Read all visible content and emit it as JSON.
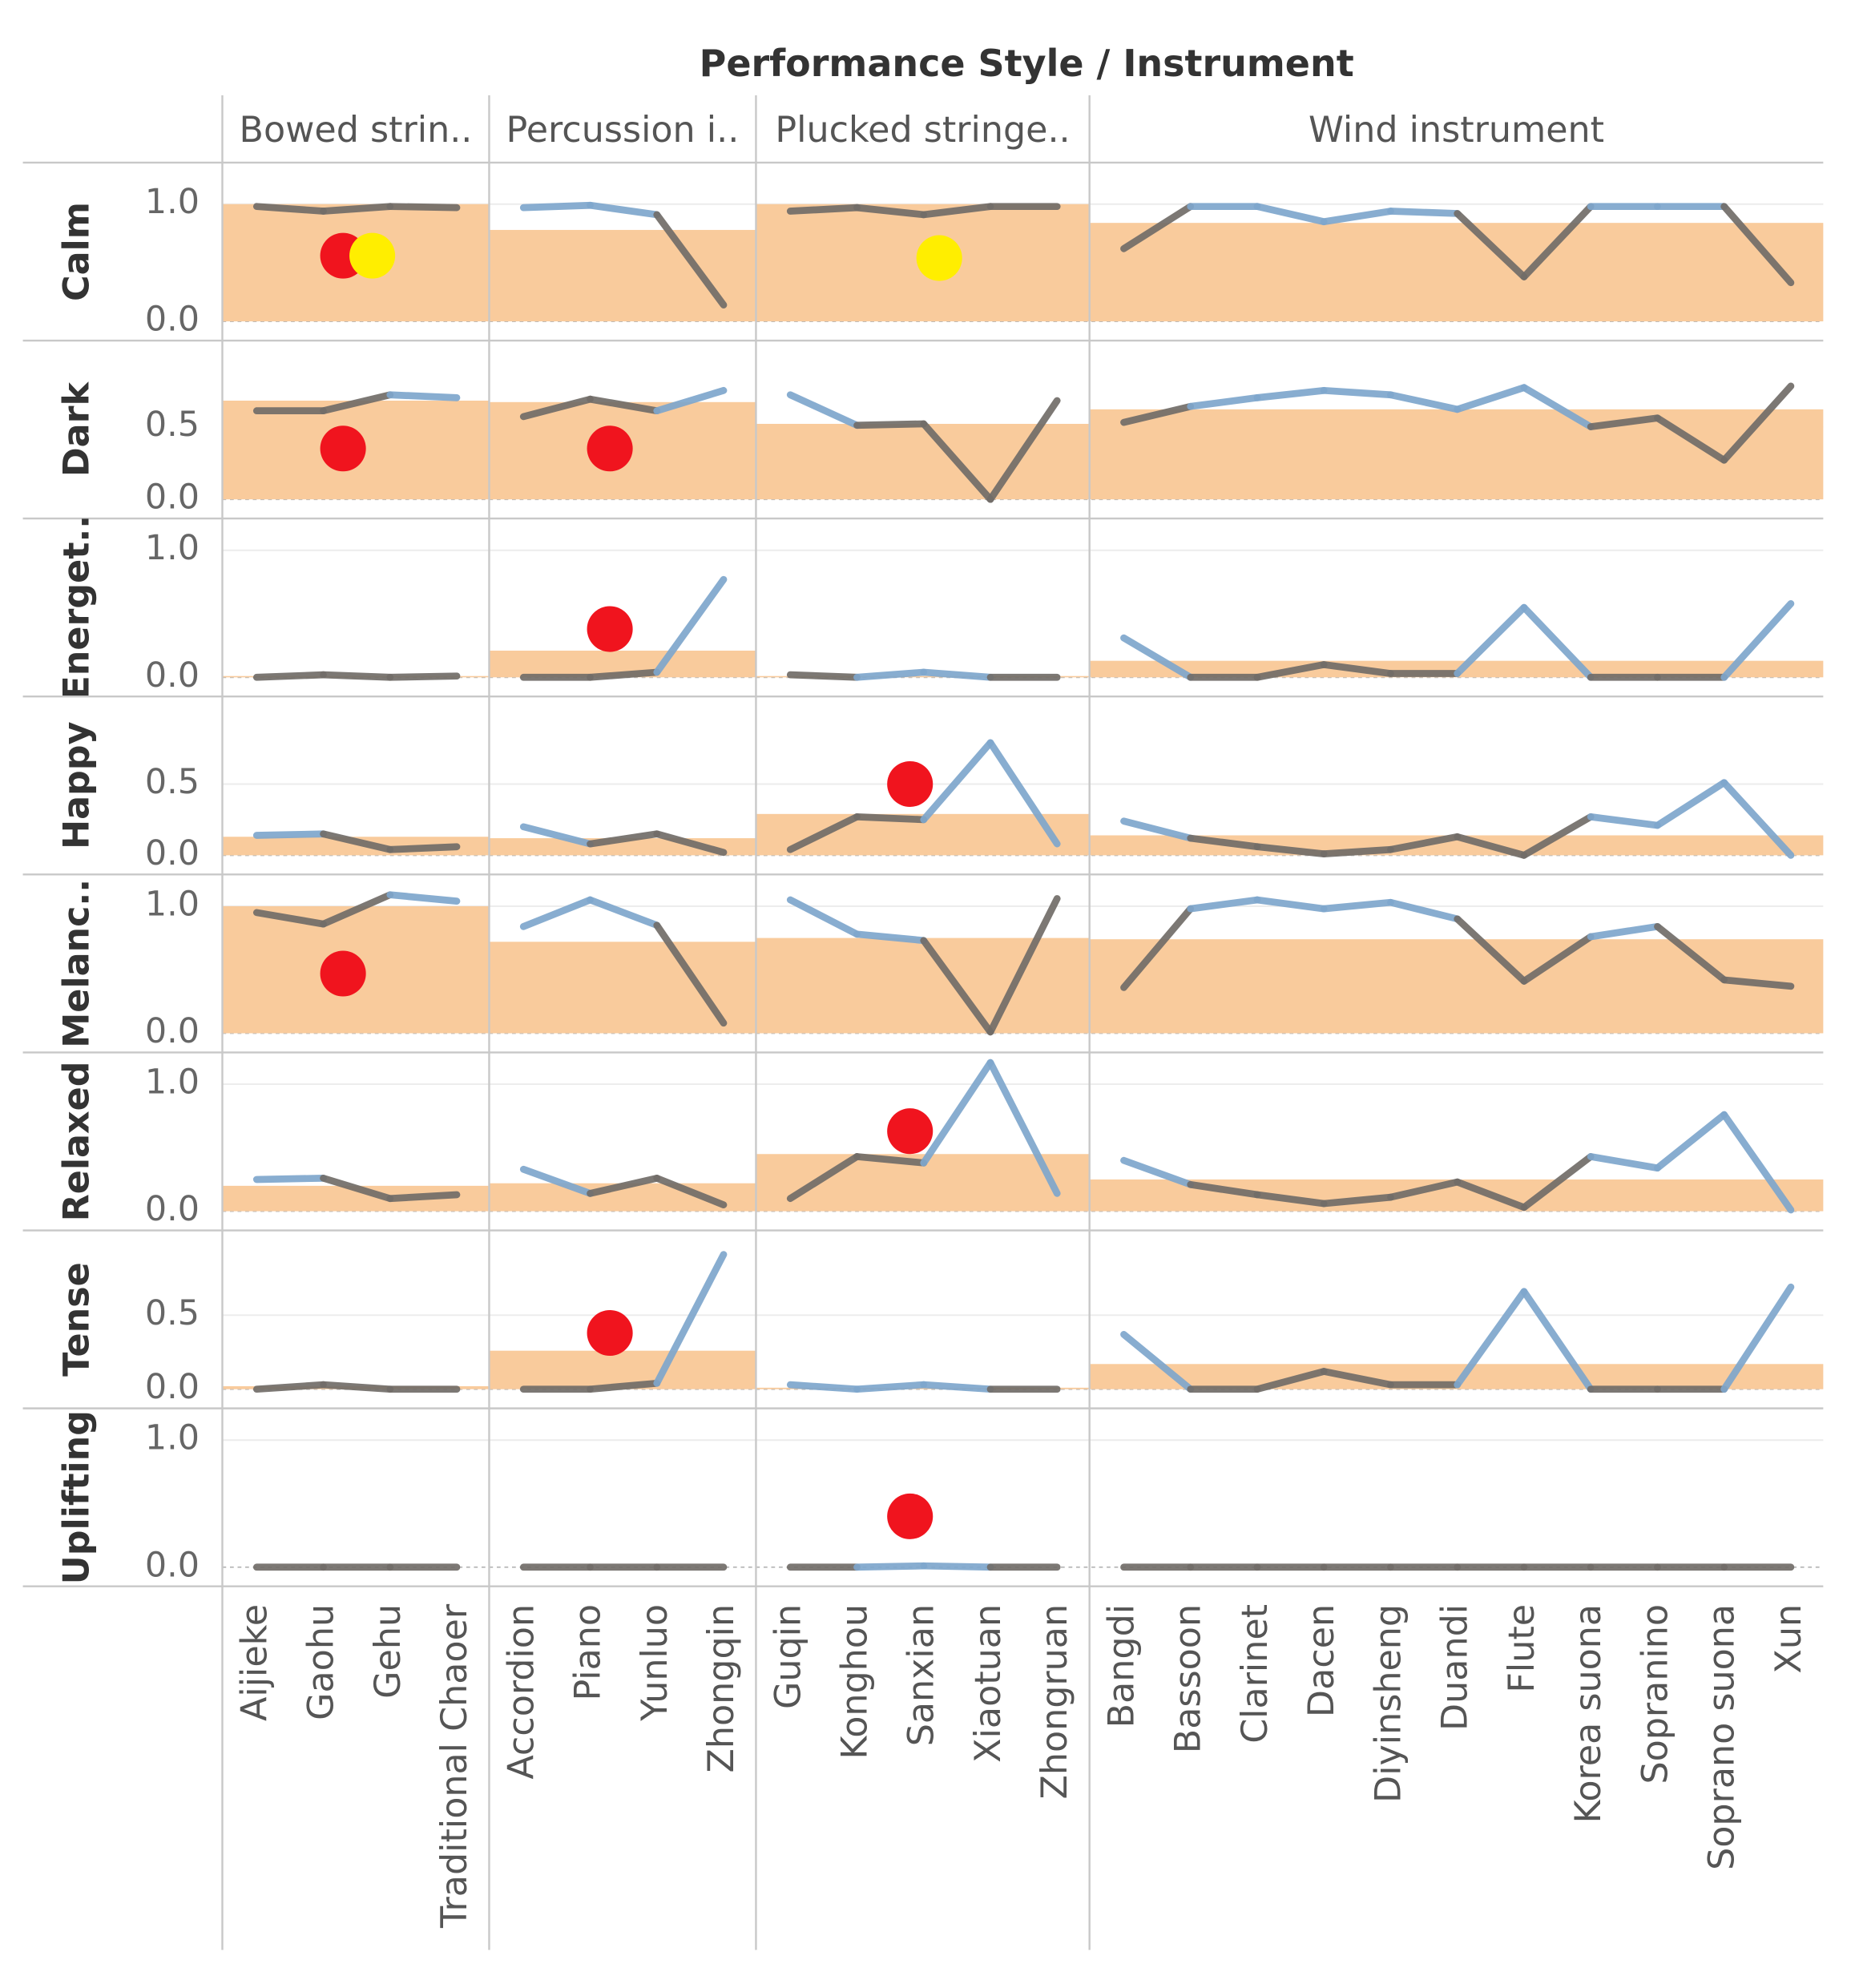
{
  "chart_data": {
    "type": "line",
    "title": "Performance Style / Instrument",
    "band_color": "#f9cb9c",
    "above_color": "#7ea6cc",
    "below_color": "#716c68",
    "grid": true,
    "groups": [
      {
        "name": "Bowed strin..",
        "instruments": [
          "Aijieke",
          "Gaohu",
          "Gehu",
          "Traditional Chaoer"
        ]
      },
      {
        "name": "Percussion i..",
        "instruments": [
          "Accordion",
          "Piano",
          "Yunluo",
          "Zhongqin"
        ]
      },
      {
        "name": "Plucked stringe..",
        "instruments": [
          "Guqin",
          "Konghou",
          "Sanxian",
          "Xiaotuan",
          "Zhongruan"
        ]
      },
      {
        "name": "Wind instrument",
        "instruments": [
          "Bangdi",
          "Bassoon",
          "Clarinet",
          "Dacen",
          "Diyinsheng",
          "Duandi",
          "Flute",
          "Korea suona",
          "Sopranino",
          "Soprano suona",
          "Xun"
        ]
      }
    ],
    "rows": [
      {
        "name": "Calm",
        "ylim": [
          0,
          1.3
        ],
        "yticks": [
          {
            "value": 0,
            "label": "0.0"
          },
          {
            "value": 1,
            "label": "1.0"
          }
        ],
        "panes": [
          {
            "band": 1.0,
            "values": [
              0.98,
              0.94,
              0.98,
              0.97
            ],
            "dots": [
              {
                "value": 0.56,
                "color": "#f0141e"
              },
              {
                "value": 0.56,
                "color": "#ffee00"
              }
            ]
          },
          {
            "band": 0.78,
            "values": [
              0.97,
              0.99,
              0.91,
              0.14
            ],
            "dots": []
          },
          {
            "band": 1.0,
            "values": [
              0.94,
              0.97,
              0.91,
              0.98,
              0.98
            ],
            "dots": [
              {
                "value": 0.54,
                "color": "#ffee00"
              }
            ]
          },
          {
            "band": 0.84,
            "values": [
              0.62,
              0.98,
              0.98,
              0.85,
              0.94,
              0.92,
              0.38,
              0.98,
              0.98,
              0.98,
              0.33
            ],
            "dots": []
          }
        ]
      },
      {
        "name": "Dark",
        "ylim": [
          0,
          1.05
        ],
        "yticks": [
          {
            "value": 0,
            "label": "0.0"
          },
          0.5
        ],
        "panes": [
          {
            "band": 0.68,
            "values": [
              0.61,
              0.61,
              0.72,
              0.7
            ],
            "dots": [
              {
                "value": 0.35,
                "color": "#f0141e"
              }
            ]
          },
          {
            "band": 0.67,
            "values": [
              0.57,
              0.69,
              0.61,
              0.75
            ],
            "dots": [
              {
                "value": 0.35,
                "color": "#f0141e"
              }
            ]
          },
          {
            "band": 0.52,
            "values": [
              0.72,
              0.51,
              0.52,
              0.0,
              0.68
            ],
            "dots": []
          },
          {
            "band": 0.62,
            "values": [
              0.53,
              0.64,
              0.7,
              0.75,
              0.72,
              0.62,
              0.77,
              0.5,
              0.56,
              0.27,
              0.78
            ],
            "dots": []
          }
        ]
      },
      {
        "name": "Energet..",
        "ylim": [
          0,
          1.2
        ],
        "yticks": [
          {
            "value": 0,
            "label": "0.0"
          },
          {
            "value": 1,
            "label": "1.0"
          }
        ],
        "panes": [
          {
            "band": 0.01,
            "values": [
              0.0,
              0.02,
              0.0,
              0.01
            ],
            "dots": []
          },
          {
            "band": 0.21,
            "values": [
              0.0,
              0.0,
              0.04,
              0.77
            ],
            "dots": [
              {
                "value": 0.38,
                "color": "#f0141e"
              }
            ]
          },
          {
            "band": 0.01,
            "values": [
              0.02,
              0.0,
              0.04,
              0.0,
              0.0
            ],
            "dots": []
          },
          {
            "band": 0.13,
            "values": [
              0.31,
              0.0,
              0.0,
              0.1,
              0.03,
              0.03,
              0.55,
              0.0,
              0.0,
              0.0,
              0.58
            ],
            "dots": []
          }
        ]
      },
      {
        "name": "Happy",
        "ylim": [
          0,
          1.07
        ],
        "yticks": [
          {
            "value": 0,
            "label": "0.0"
          },
          0.5
        ],
        "panes": [
          {
            "band": 0.13,
            "values": [
              0.14,
              0.15,
              0.04,
              0.06
            ],
            "dots": []
          },
          {
            "band": 0.12,
            "values": [
              0.2,
              0.08,
              0.15,
              0.02
            ],
            "dots": []
          },
          {
            "band": 0.29,
            "values": [
              0.04,
              0.27,
              0.25,
              0.79,
              0.08
            ],
            "dots": [
              {
                "value": 0.5,
                "color": "#f0141e"
              }
            ]
          },
          {
            "band": 0.14,
            "values": [
              0.24,
              0.12,
              0.06,
              0.01,
              0.04,
              0.13,
              0.0,
              0.27,
              0.21,
              0.51,
              0.0
            ],
            "dots": []
          }
        ]
      },
      {
        "name": "Melanc..",
        "ylim": [
          0,
          1.2
        ],
        "yticks": [
          {
            "value": 0,
            "label": "0.0"
          },
          {
            "value": 1,
            "label": "1.0"
          }
        ],
        "panes": [
          {
            "band": 1.0,
            "values": [
              0.95,
              0.86,
              1.09,
              1.04
            ],
            "dots": [
              {
                "value": 0.47,
                "color": "#f0141e"
              }
            ]
          },
          {
            "band": 0.72,
            "values": [
              0.84,
              1.05,
              0.85,
              0.08
            ],
            "dots": []
          },
          {
            "band": 0.75,
            "values": [
              1.05,
              0.78,
              0.73,
              0.01,
              1.06
            ],
            "dots": []
          },
          {
            "band": 0.74,
            "values": [
              0.36,
              0.98,
              1.05,
              0.98,
              1.03,
              0.9,
              0.41,
              0.76,
              0.84,
              0.42,
              0.37
            ],
            "dots": []
          }
        ]
      },
      {
        "name": "Relaxed",
        "ylim": [
          0,
          1.2
        ],
        "yticks": [
          {
            "value": 0,
            "label": "0.0"
          },
          {
            "value": 1,
            "label": "1.0"
          }
        ],
        "panes": [
          {
            "band": 0.2,
            "values": [
              0.25,
              0.26,
              0.1,
              0.13
            ],
            "dots": []
          },
          {
            "band": 0.22,
            "values": [
              0.33,
              0.14,
              0.26,
              0.05
            ],
            "dots": []
          },
          {
            "band": 0.45,
            "values": [
              0.1,
              0.43,
              0.38,
              1.17,
              0.14
            ],
            "dots": [
              {
                "value": 0.63,
                "color": "#f0141e"
              }
            ]
          },
          {
            "band": 0.25,
            "values": [
              0.4,
              0.21,
              0.13,
              0.06,
              0.11,
              0.23,
              0.03,
              0.43,
              0.34,
              0.76,
              0.01
            ],
            "dots": []
          }
        ]
      },
      {
        "name": "Tense",
        "ylim": [
          0,
          1.03
        ],
        "yticks": [
          {
            "value": 0,
            "label": "0.0"
          },
          0.5
        ],
        "panes": [
          {
            "band": 0.02,
            "values": [
              0.0,
              0.03,
              0.0,
              0.0
            ],
            "dots": []
          },
          {
            "band": 0.26,
            "values": [
              0.0,
              0.0,
              0.04,
              0.91
            ],
            "dots": [
              {
                "value": 0.38,
                "color": "#f0141e"
              }
            ]
          },
          {
            "band": 0.01,
            "values": [
              0.03,
              0.0,
              0.03,
              0.0,
              0.0
            ],
            "dots": []
          },
          {
            "band": 0.17,
            "values": [
              0.37,
              0.0,
              0.0,
              0.12,
              0.03,
              0.03,
              0.66,
              0.0,
              0.0,
              0.0,
              0.69
            ],
            "dots": []
          }
        ]
      },
      {
        "name": "Uplifting",
        "ylim": [
          0,
          1.2
        ],
        "yticks": [
          {
            "value": 0,
            "label": "0.0"
          },
          {
            "value": 1,
            "label": "1.0"
          }
        ],
        "panes": [
          {
            "band": 0,
            "values": [
              0,
              0,
              0,
              0
            ],
            "dots": []
          },
          {
            "band": 0,
            "values": [
              0,
              0,
              0,
              0
            ],
            "dots": []
          },
          {
            "band": 0,
            "values": [
              0,
              0,
              0.01,
              0,
              0
            ],
            "dots": [
              {
                "value": 0.4,
                "color": "#f0141e"
              }
            ]
          },
          {
            "band": 0,
            "values": [
              0,
              0,
              0,
              0,
              0,
              0,
              0,
              0,
              0,
              0,
              0
            ],
            "dots": []
          }
        ]
      }
    ]
  }
}
